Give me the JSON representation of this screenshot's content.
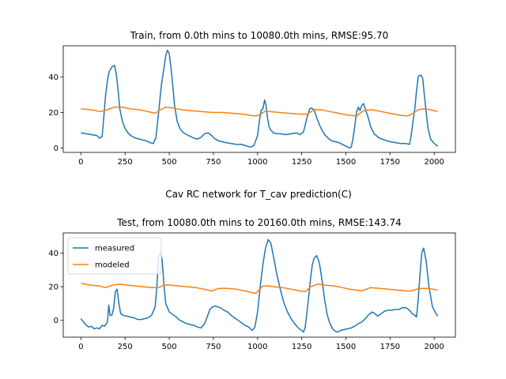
{
  "figure": {
    "suptitle": "Cav RC network for T_cav prediction(C)"
  },
  "colors": {
    "measured": "#1f77b4",
    "modeled": "#ff7f0e"
  },
  "chart_data": [
    {
      "type": "line",
      "title": "Train, from 0.0th mins to 10080.0th mins, RMSE:95.70",
      "xlim": [
        -100,
        2120
      ],
      "ylim": [
        -2.5,
        57.5
      ],
      "xticks": [
        0,
        250,
        500,
        750,
        1000,
        1250,
        1500,
        1750,
        2000
      ],
      "yticks": [
        0,
        20,
        40
      ],
      "legend": null,
      "series": [
        {
          "key": "measured",
          "x": [
            0,
            30,
            60,
            90,
            105,
            120,
            130,
            140,
            150,
            160,
            175,
            190,
            200,
            210,
            220,
            235,
            250,
            270,
            290,
            310,
            330,
            350,
            370,
            390,
            410,
            425,
            440,
            455,
            470,
            480,
            490,
            500,
            510,
            520,
            530,
            545,
            560,
            580,
            600,
            620,
            640,
            660,
            680,
            700,
            720,
            740,
            760,
            780,
            800,
            820,
            850,
            880,
            910,
            940,
            960,
            980,
            1000,
            1010,
            1020,
            1030,
            1040,
            1048,
            1056,
            1065,
            1075,
            1090,
            1110,
            1130,
            1160,
            1190,
            1220,
            1240,
            1260,
            1280,
            1295,
            1305,
            1320,
            1335,
            1350,
            1365,
            1380,
            1400,
            1420,
            1440,
            1460,
            1480,
            1500,
            1520,
            1530,
            1540,
            1550,
            1560,
            1570,
            1580,
            1590,
            1600,
            1610,
            1620,
            1630,
            1640,
            1660,
            1690,
            1720,
            1750,
            1780,
            1810,
            1840,
            1860,
            1870,
            1880,
            1890,
            1900,
            1910,
            1925,
            1935,
            1945,
            1955,
            1965,
            1980,
            2000,
            2020
          ],
          "y": [
            8.5,
            8.0,
            7.5,
            7.0,
            5.5,
            6.5,
            18.0,
            30.0,
            38.0,
            43.0,
            45.5,
            46.5,
            42.0,
            33.0,
            22.0,
            15.0,
            11.0,
            8.0,
            6.5,
            5.5,
            5.0,
            4.5,
            4.0,
            3.0,
            2.5,
            6.0,
            20.0,
            35.0,
            45.0,
            52.0,
            55.0,
            53.0,
            45.0,
            35.0,
            24.0,
            15.0,
            11.0,
            8.5,
            7.5,
            6.5,
            5.5,
            5.0,
            6.0,
            8.0,
            8.5,
            7.0,
            5.0,
            4.0,
            3.5,
            3.0,
            2.5,
            2.0,
            2.0,
            1.0,
            0.5,
            1.5,
            7.0,
            15.0,
            21.0,
            22.0,
            27.0,
            24.0,
            17.0,
            12.0,
            10.0,
            8.5,
            8.0,
            8.0,
            7.5,
            8.0,
            8.5,
            7.5,
            9.0,
            17.0,
            22.0,
            22.5,
            21.5,
            17.0,
            13.0,
            10.0,
            7.5,
            5.5,
            4.0,
            3.5,
            3.0,
            2.0,
            1.0,
            0.0,
            0.5,
            5.0,
            12.0,
            20.0,
            23.0,
            21.0,
            24.0,
            25.0,
            22.0,
            19.0,
            16.0,
            12.0,
            8.0,
            5.5,
            4.5,
            3.5,
            3.0,
            2.5,
            2.5,
            2.0,
            7.0,
            15.0,
            22.0,
            32.0,
            40.5,
            41.0,
            39.0,
            29.0,
            20.0,
            11.0,
            5.0,
            2.5,
            1.0
          ]
        },
        {
          "key": "modeled",
          "x": [
            0,
            60,
            110,
            150,
            190,
            230,
            280,
            330,
            380,
            420,
            450,
            480,
            520,
            570,
            620,
            680,
            740,
            800,
            860,
            920,
            980,
            1010,
            1040,
            1070,
            1120,
            1180,
            1240,
            1280,
            1320,
            1360,
            1410,
            1460,
            1510,
            1560,
            1600,
            1650,
            1700,
            1750,
            1800,
            1850,
            1880,
            1910,
            1940,
            1980,
            2020
          ],
          "y": [
            22.0,
            21.5,
            20.5,
            21.5,
            23.0,
            23.0,
            22.0,
            21.5,
            20.5,
            19.5,
            21.5,
            23.0,
            22.5,
            21.5,
            21.0,
            20.5,
            20.0,
            20.0,
            19.5,
            19.0,
            18.0,
            18.5,
            20.5,
            20.5,
            20.0,
            19.5,
            19.0,
            19.0,
            21.5,
            21.5,
            20.5,
            19.5,
            18.5,
            18.0,
            21.0,
            21.5,
            20.5,
            19.5,
            18.5,
            18.0,
            19.5,
            21.5,
            22.0,
            21.5,
            20.5
          ]
        }
      ]
    },
    {
      "type": "line",
      "title": "Test, from 10080.0th mins to 20160.0th mins, RMSE:143.74",
      "xlim": [
        -100,
        2120
      ],
      "ylim": [
        -10,
        52
      ],
      "xticks": [
        0,
        250,
        500,
        750,
        1000,
        1250,
        1500,
        1750,
        2000
      ],
      "yticks": [
        0,
        20,
        40
      ],
      "legend": [
        "measured",
        "modeled"
      ],
      "legend_loc": "upper left",
      "series": [
        {
          "key": "measured",
          "x": [
            0,
            15,
            30,
            45,
            60,
            75,
            90,
            105,
            120,
            135,
            150,
            158,
            165,
            175,
            185,
            195,
            205,
            215,
            225,
            240,
            260,
            280,
            300,
            320,
            340,
            360,
            380,
            400,
            420,
            430,
            440,
            450,
            460,
            470,
            480,
            500,
            520,
            540,
            560,
            580,
            600,
            620,
            640,
            660,
            680,
            700,
            715,
            730,
            745,
            760,
            775,
            790,
            810,
            830,
            850,
            870,
            890,
            910,
            930,
            950,
            970,
            985,
            1000,
            1015,
            1030,
            1045,
            1060,
            1075,
            1090,
            1110,
            1130,
            1150,
            1170,
            1190,
            1210,
            1230,
            1250,
            1260,
            1270,
            1280,
            1290,
            1300,
            1310,
            1320,
            1335,
            1350,
            1365,
            1380,
            1395,
            1410,
            1425,
            1440,
            1455,
            1470,
            1490,
            1510,
            1530,
            1550,
            1570,
            1590,
            1610,
            1630,
            1650,
            1665,
            1680,
            1700,
            1720,
            1740,
            1760,
            1780,
            1800,
            1820,
            1840,
            1860,
            1875,
            1890,
            1900,
            1910,
            1920,
            1930,
            1940,
            1955,
            1970,
            1990,
            2010,
            2020
          ],
          "y": [
            1.0,
            -1.0,
            -3.0,
            -4.0,
            -3.5,
            -5.0,
            -4.5,
            -5.0,
            -3.0,
            -3.5,
            -1.0,
            9.0,
            3.0,
            3.0,
            7.0,
            17.0,
            18.5,
            10.0,
            4.0,
            3.0,
            2.5,
            2.0,
            1.5,
            0.5,
            0.5,
            1.0,
            1.5,
            3.0,
            8.0,
            20.0,
            38.0,
            40.0,
            36.0,
            21.0,
            10.0,
            5.0,
            3.5,
            2.0,
            0.0,
            -1.0,
            -2.0,
            -2.5,
            -3.0,
            -4.0,
            -4.5,
            -2.0,
            2.0,
            6.5,
            8.0,
            8.5,
            8.0,
            7.5,
            6.0,
            5.0,
            3.0,
            1.5,
            0.0,
            -1.5,
            -3.0,
            -4.0,
            -6.0,
            -4.0,
            5.0,
            20.0,
            33.0,
            43.0,
            48.0,
            46.0,
            38.0,
            27.0,
            18.0,
            10.0,
            5.0,
            1.0,
            -2.0,
            -4.5,
            -6.0,
            -7.0,
            -4.0,
            5.0,
            15.0,
            25.0,
            33.0,
            37.0,
            38.5,
            34.0,
            24.0,
            12.0,
            3.0,
            -2.0,
            -5.0,
            -6.5,
            -7.0,
            -6.0,
            -5.5,
            -5.0,
            -4.5,
            -3.5,
            -2.0,
            -1.0,
            1.0,
            3.5,
            5.0,
            4.0,
            2.5,
            4.0,
            5.5,
            6.0,
            6.0,
            6.5,
            6.5,
            7.5,
            7.5,
            6.0,
            4.0,
            3.0,
            2.0,
            13.0,
            28.0,
            40.0,
            43.0,
            35.0,
            20.0,
            8.0,
            4.0,
            2.5
          ]
        },
        {
          "key": "modeled",
          "x": [
            0,
            50,
            100,
            140,
            180,
            220,
            260,
            300,
            350,
            400,
            440,
            470,
            500,
            550,
            600,
            650,
            700,
            740,
            780,
            830,
            880,
            930,
            990,
            1030,
            1060,
            1090,
            1140,
            1190,
            1240,
            1270,
            1300,
            1340,
            1380,
            1430,
            1480,
            1520,
            1560,
            1590,
            1640,
            1690,
            1740,
            1790,
            1840,
            1870,
            1900,
            1930,
            1970,
            2020
          ],
          "y": [
            22.0,
            21.0,
            20.5,
            19.5,
            21.0,
            21.5,
            21.0,
            20.5,
            20.0,
            19.5,
            19.5,
            21.0,
            21.0,
            20.5,
            20.0,
            19.5,
            18.5,
            17.5,
            19.0,
            19.0,
            18.5,
            17.5,
            16.0,
            20.5,
            20.5,
            20.0,
            19.5,
            18.5,
            17.5,
            17.0,
            20.0,
            21.5,
            21.0,
            20.5,
            19.5,
            18.5,
            18.0,
            17.5,
            19.5,
            19.0,
            18.5,
            18.0,
            17.5,
            17.5,
            18.5,
            19.0,
            19.0,
            18.0
          ]
        }
      ]
    }
  ]
}
